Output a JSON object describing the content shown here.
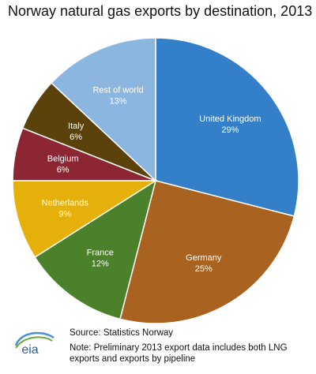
{
  "chart_data": {
    "type": "pie",
    "title": "Norway natural gas exports by destination, 2013",
    "unit": "%",
    "slices": [
      {
        "label": "United Kingdom",
        "value": 29,
        "display": "29%",
        "color": "#3480c8",
        "text_color": "#ffffff"
      },
      {
        "label": "Germany",
        "value": 25,
        "display": "25%",
        "color": "#a9621f",
        "text_color": "#ffffff"
      },
      {
        "label": "France",
        "value": 12,
        "display": "12%",
        "color": "#4b812a",
        "text_color": "#ffffff"
      },
      {
        "label": "Netherlands",
        "value": 9,
        "display": "9%",
        "color": "#e6b00a",
        "text_color": "#ffffff"
      },
      {
        "label": "Belgium",
        "value": 6,
        "display": "6%",
        "color": "#8c2633",
        "text_color": "#ffffff"
      },
      {
        "label": "Italy",
        "value": 6,
        "display": "6%",
        "color": "#5a420a",
        "text_color": "#ffffff"
      },
      {
        "label": "Rest of world",
        "value": 13,
        "display": "13%",
        "color": "#8ab6e0",
        "text_color": "#ffffff"
      }
    ]
  },
  "footer": {
    "logo_text": "eia",
    "source": "Source:  Statistics Norway",
    "note": "Note: Preliminary 2013 export data includes both LNG exports and exports by pipeline"
  }
}
